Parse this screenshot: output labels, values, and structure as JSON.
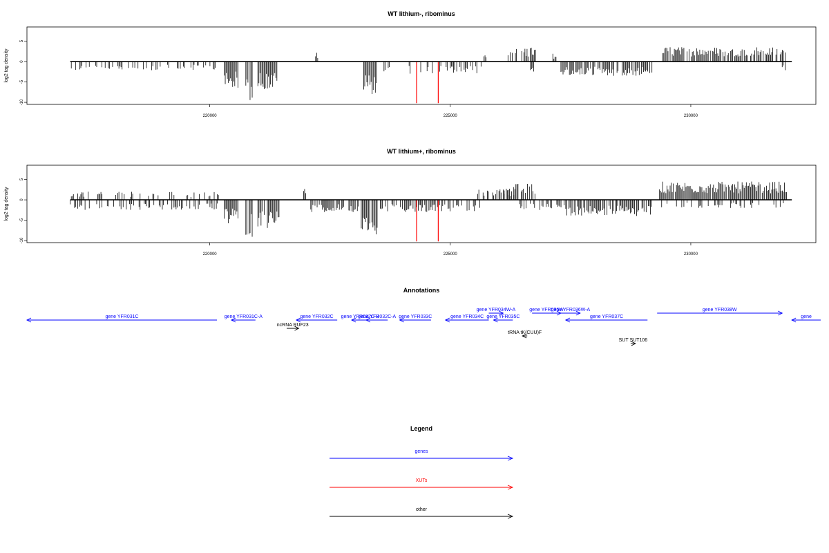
{
  "colors": {
    "gene": "#0000ff",
    "xut": "#ff0000",
    "other": "#000000",
    "axis": "#000000",
    "bars": "#000000"
  },
  "chart_data": [
    {
      "type": "bar",
      "title": "WT lithium-, ribominus",
      "ylabel": "log2 tag density",
      "xlim": [
        216200,
        232600
      ],
      "ylim": [
        -10.5,
        8.5
      ],
      "xticks": [
        220000,
        225000,
        230000
      ],
      "yticks": [
        5,
        0,
        -5,
        -10
      ],
      "grid": false,
      "xut_marks": [
        224300,
        224750
      ],
      "segments": [
        {
          "from": 217100,
          "to": 220200,
          "sign": -1,
          "amp": 2.2,
          "density": 0.35
        },
        {
          "from": 220300,
          "to": 220600,
          "sign": -1,
          "amp": 6.5,
          "density": 0.95
        },
        {
          "from": 220750,
          "to": 220900,
          "sign": -1,
          "amp": 9.5,
          "density": 0.95
        },
        {
          "from": 221000,
          "to": 221400,
          "sign": -1,
          "amp": 7.0,
          "density": 0.95
        },
        {
          "from": 222200,
          "to": 222250,
          "sign": 1,
          "amp": 2.3,
          "density": 1.0
        },
        {
          "from": 223200,
          "to": 223500,
          "sign": -1,
          "amp": 8.0,
          "density": 0.95
        },
        {
          "from": 223600,
          "to": 223750,
          "sign": -1,
          "amp": 3.0,
          "density": 0.6
        },
        {
          "from": 224100,
          "to": 225800,
          "sign": -1,
          "amp": 3.0,
          "density": 0.35
        },
        {
          "from": 225700,
          "to": 225750,
          "sign": 1,
          "amp": 1.8,
          "density": 1.0
        },
        {
          "from": 226200,
          "to": 226800,
          "sign": 1,
          "amp": 3.5,
          "density": 0.5
        },
        {
          "from": 226600,
          "to": 226750,
          "sign": -1,
          "amp": 2.5,
          "density": 0.4
        },
        {
          "from": 227000,
          "to": 227200,
          "sign": 1,
          "amp": 2.0,
          "density": 0.4
        },
        {
          "from": 227300,
          "to": 229200,
          "sign": -1,
          "amp": 3.5,
          "density": 0.8
        },
        {
          "from": 229350,
          "to": 232000,
          "sign": 1,
          "amp": 3.6,
          "density": 0.75
        },
        {
          "from": 231900,
          "to": 232050,
          "sign": -1,
          "amp": 2.5,
          "density": 0.6
        }
      ]
    },
    {
      "type": "bar",
      "title": "WT lithium+, ribominus",
      "ylabel": "log2 tag density",
      "xlim": [
        216200,
        232600
      ],
      "ylim": [
        -10.5,
        8.5
      ],
      "xticks": [
        220000,
        225000,
        230000
      ],
      "yticks": [
        5,
        0,
        -5,
        -10
      ],
      "grid": false,
      "xut_marks": [
        224300,
        224750
      ],
      "segments": [
        {
          "from": 217100,
          "to": 220200,
          "sign": 1,
          "amp": 2.0,
          "density": 0.3
        },
        {
          "from": 217100,
          "to": 220200,
          "sign": -1,
          "amp": 2.5,
          "density": 0.35
        },
        {
          "from": 220300,
          "to": 220600,
          "sign": -1,
          "amp": 6.0,
          "density": 0.95
        },
        {
          "from": 220750,
          "to": 220900,
          "sign": -1,
          "amp": 9.5,
          "density": 0.95
        },
        {
          "from": 221000,
          "to": 221450,
          "sign": -1,
          "amp": 7.0,
          "density": 0.95
        },
        {
          "from": 221950,
          "to": 222000,
          "sign": 1,
          "amp": 3.5,
          "density": 1.0
        },
        {
          "from": 222100,
          "to": 223100,
          "sign": -1,
          "amp": 3.0,
          "density": 0.75
        },
        {
          "from": 223150,
          "to": 223500,
          "sign": -1,
          "amp": 8.5,
          "density": 0.95
        },
        {
          "from": 223500,
          "to": 225700,
          "sign": -1,
          "amp": 3.0,
          "density": 0.45
        },
        {
          "from": 225550,
          "to": 226400,
          "sign": 1,
          "amp": 2.8,
          "density": 0.45
        },
        {
          "from": 226100,
          "to": 226800,
          "sign": 1,
          "amp": 4.0,
          "density": 0.6
        },
        {
          "from": 226400,
          "to": 227400,
          "sign": -1,
          "amp": 2.5,
          "density": 0.4
        },
        {
          "from": 227400,
          "to": 229200,
          "sign": -1,
          "amp": 4.0,
          "density": 0.85
        },
        {
          "from": 229350,
          "to": 232000,
          "sign": 1,
          "amp": 4.5,
          "density": 0.95
        },
        {
          "from": 229350,
          "to": 232000,
          "sign": -1,
          "amp": 2.0,
          "density": 0.3
        }
      ]
    }
  ],
  "annotations": {
    "title": "Annotations",
    "features": [
      {
        "label": "gene YFR031C",
        "type": "gene",
        "strand": "-",
        "start": 216200,
        "end": 220150,
        "row": 1
      },
      {
        "label": "gene YFR031C-A",
        "type": "gene",
        "strand": "-",
        "start": 220450,
        "end": 220950,
        "row": 1
      },
      {
        "label": "gene YFR032C",
        "type": "gene",
        "strand": "-",
        "start": 221800,
        "end": 222650,
        "row": 1
      },
      {
        "label": "gene YFR032C-B",
        "type": "gene",
        "strand": "-",
        "start": 222950,
        "end": 223300,
        "row": 1
      },
      {
        "label": "gene YFR032C-A",
        "type": "gene",
        "strand": "-",
        "start": 223250,
        "end": 223700,
        "row": 1
      },
      {
        "label": "gene YFR033C",
        "type": "gene",
        "strand": "-",
        "start": 223950,
        "end": 224600,
        "row": 1
      },
      {
        "label": "gene YFR034C",
        "type": "gene",
        "strand": "-",
        "start": 224900,
        "end": 225800,
        "row": 1
      },
      {
        "label": "gene YFR035C",
        "type": "gene",
        "strand": "-",
        "start": 225900,
        "end": 226300,
        "row": 1
      },
      {
        "label": "gene YFR034W-A",
        "type": "gene",
        "strand": "+",
        "start": 225800,
        "end": 226100,
        "row": 2
      },
      {
        "label": "gene YFR036W",
        "type": "gene",
        "strand": "+",
        "start": 226700,
        "end": 227300,
        "row": 2
      },
      {
        "label": "gene YFR036W-A",
        "type": "gene",
        "strand": "+",
        "start": 227300,
        "end": 227700,
        "row": 2
      },
      {
        "label": "gene YFR037C",
        "type": "gene",
        "strand": "-",
        "start": 227400,
        "end": 229100,
        "row": 1
      },
      {
        "label": "gene YFR038W",
        "type": "gene",
        "strand": "+",
        "start": 229300,
        "end": 231900,
        "row": 2
      },
      {
        "label": "gene",
        "type": "gene",
        "strand": "-",
        "start": 232100,
        "end": 232700,
        "row": 1
      },
      {
        "label": "ncRNA RUF23",
        "type": "other",
        "strand": "+",
        "start": 221600,
        "end": 221850,
        "row": 0
      },
      {
        "label": "tRNA tK(CUU)F",
        "type": "other",
        "strand": "-",
        "start": 226500,
        "end": 226600,
        "row": -1
      },
      {
        "label": "SUT SUT106",
        "type": "other",
        "strand": "+",
        "start": 228750,
        "end": 228850,
        "row": -2
      }
    ]
  },
  "legend": {
    "title": "Legend",
    "entries": [
      {
        "label": "genes",
        "color": "#0000ff"
      },
      {
        "label": "XUTs",
        "color": "#ff0000"
      },
      {
        "label": "other",
        "color": "#000000"
      }
    ]
  }
}
